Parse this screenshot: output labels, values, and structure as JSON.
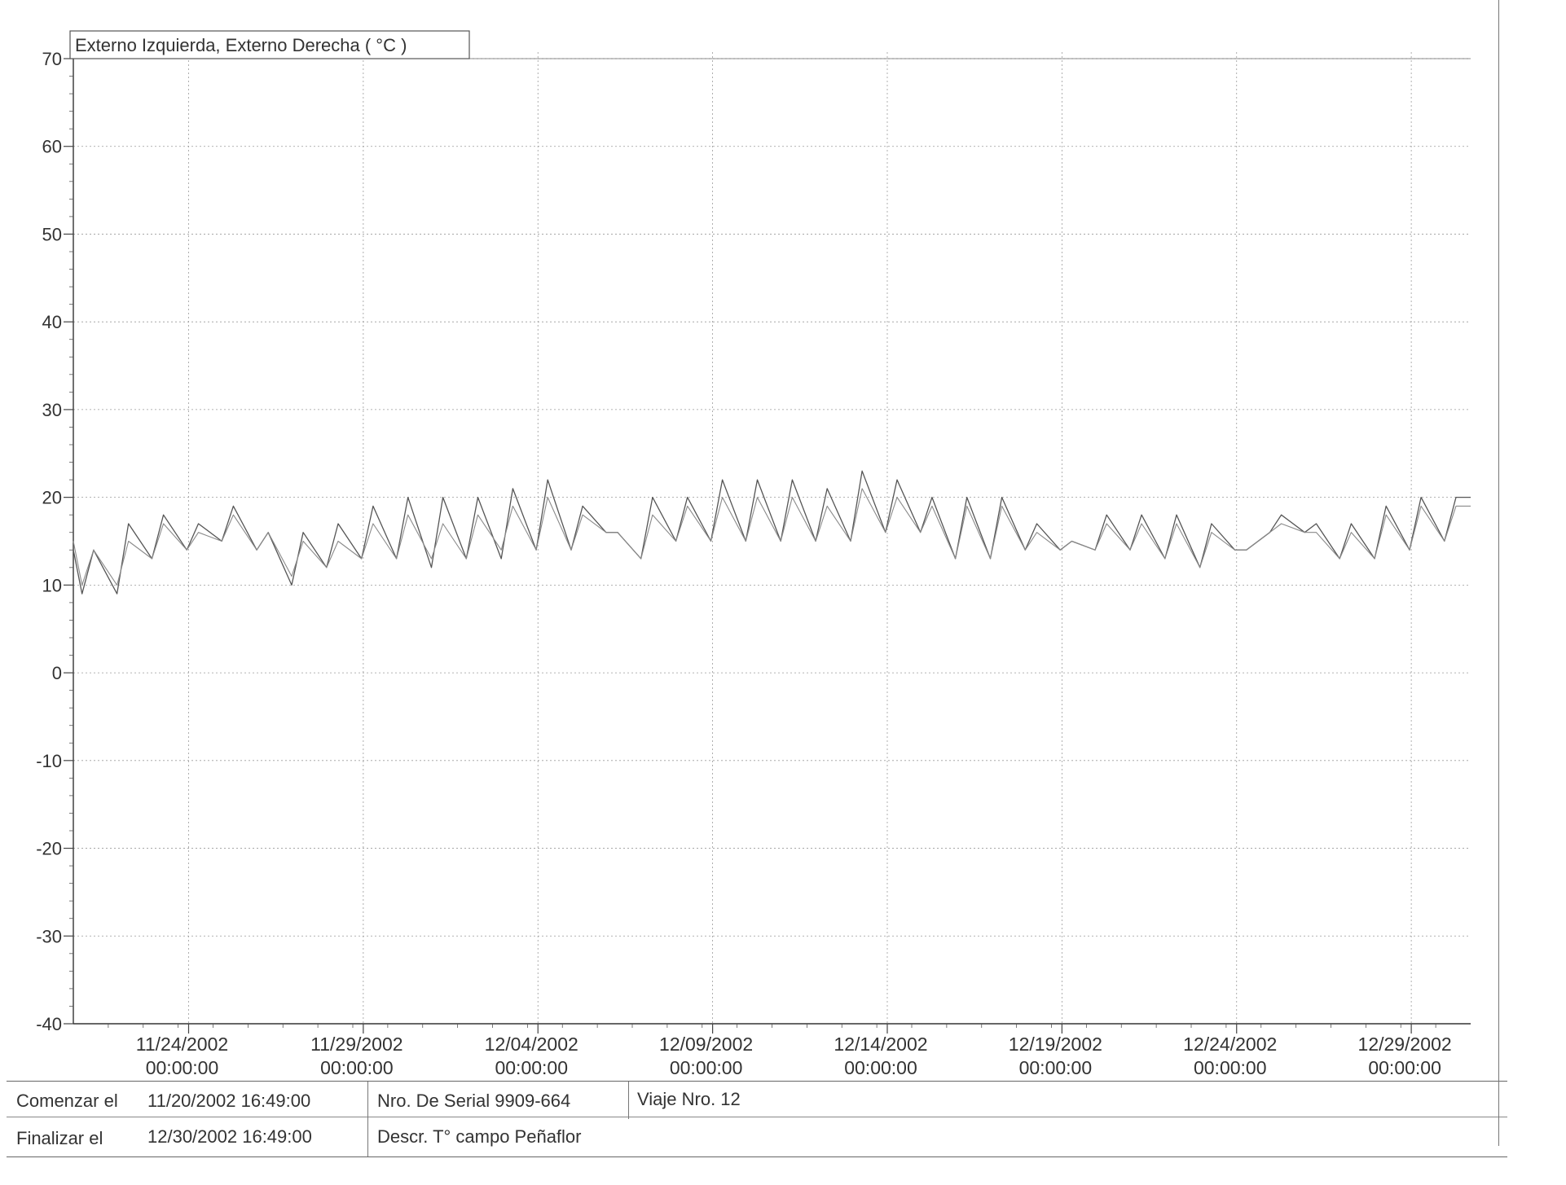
{
  "chart_data": {
    "type": "line",
    "legend_title": "Externo Izquierda, Externo Derecha ( °C )",
    "ylim": [
      -40,
      70
    ],
    "y_ticks": [
      "70",
      "60",
      "50",
      "40",
      "30",
      "20",
      "10",
      "0",
      "-10",
      "-20",
      "-30",
      "-40"
    ],
    "y_tick_values": [
      70,
      60,
      50,
      40,
      30,
      20,
      10,
      0,
      -10,
      -20,
      -30,
      -40
    ],
    "x_ticks": [
      {
        "date": "11/24/2002",
        "time": "00:00:00",
        "day": 3.3
      },
      {
        "date": "11/29/2002",
        "time": "00:00:00",
        "day": 8.3
      },
      {
        "date": "12/04/2002",
        "time": "00:00:00",
        "day": 13.3
      },
      {
        "date": "12/09/2002",
        "time": "00:00:00",
        "day": 18.3
      },
      {
        "date": "12/14/2002",
        "time": "00:00:00",
        "day": 23.3
      },
      {
        "date": "12/19/2002",
        "time": "00:00:00",
        "day": 28.3
      },
      {
        "date": "12/24/2002",
        "time": "00:00:00",
        "day": 33.3
      },
      {
        "date": "12/29/2002",
        "time": "00:00:00",
        "day": 38.3
      }
    ],
    "x_range_days": [
      0,
      40
    ],
    "grid": true,
    "series": [
      {
        "color": "#555555",
        "daily_max": [
          14,
          17,
          18,
          17,
          19,
          16,
          16,
          17,
          19,
          20,
          20,
          20,
          21,
          22,
          19,
          16,
          20,
          20,
          22,
          22,
          22,
          21,
          23,
          22,
          20,
          20,
          20,
          17,
          15,
          18,
          18,
          18,
          17,
          14,
          18,
          17,
          17,
          19,
          20,
          20
        ],
        "daily_min": [
          9,
          9,
          13,
          14,
          15,
          14,
          10,
          12,
          13,
          13,
          12,
          13,
          13,
          14,
          14,
          16,
          13,
          15,
          15,
          15,
          15,
          15,
          15,
          16,
          16,
          13,
          13,
          14,
          14,
          14,
          14,
          13,
          12,
          14,
          16,
          16,
          13,
          13,
          14,
          15
        ]
      },
      {
        "color": "#8a8a8a",
        "daily_max": [
          14,
          15,
          17,
          16,
          18,
          16,
          15,
          15,
          17,
          18,
          17,
          18,
          19,
          20,
          18,
          16,
          18,
          19,
          20,
          20,
          20,
          19,
          21,
          20,
          19,
          19,
          19,
          16,
          15,
          17,
          17,
          17,
          16,
          14,
          17,
          16,
          16,
          18,
          19,
          19
        ],
        "daily_min": [
          10,
          10,
          13,
          14,
          15,
          14,
          11,
          12,
          13,
          13,
          13,
          13,
          14,
          14,
          14,
          16,
          13,
          15,
          15,
          15,
          15,
          15,
          15,
          16,
          16,
          13,
          13,
          14,
          14,
          14,
          14,
          13,
          12,
          14,
          16,
          16,
          13,
          13,
          14,
          15
        ]
      }
    ]
  },
  "info": {
    "start_label": "Comenzar el",
    "start_value": "11/20/2002 16:49:00",
    "end_label": "Finalizar el",
    "end_value": "12/30/2002 16:49:00",
    "serial": "Nro. De Serial  9909-664",
    "trip": "Viaje Nro. 12",
    "descr": "Descr. T° campo Peñaflor"
  }
}
